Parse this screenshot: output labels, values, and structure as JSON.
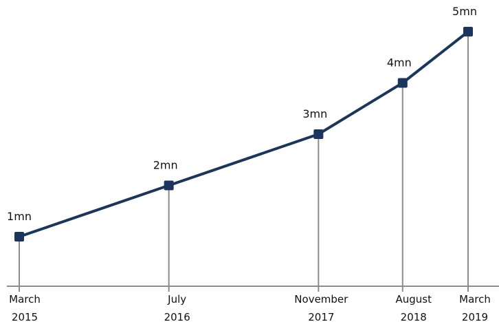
{
  "chart_data": {
    "type": "line",
    "title": "",
    "xlabel": "",
    "ylabel": "",
    "x": [
      "2015-03",
      "2016-07",
      "2017-11",
      "2018-08",
      "2019-03"
    ],
    "categories": [
      {
        "month": "March",
        "year": "2015"
      },
      {
        "month": "July",
        "year": "2016"
      },
      {
        "month": "November",
        "year": "2017"
      },
      {
        "month": "August",
        "year": "2018"
      },
      {
        "month": "March",
        "year": "2019"
      }
    ],
    "series": [
      {
        "values": [
          1,
          2,
          3,
          4,
          5
        ],
        "labels": [
          "1mn",
          "2mn",
          "3mn",
          "4mn",
          "5mn"
        ]
      }
    ],
    "grid": false,
    "legend": "none",
    "colors": {
      "line": "#1b365d",
      "marker": "#1b365d",
      "drop_line": "#8c8c8c",
      "axis": "#8c8c8c"
    }
  }
}
